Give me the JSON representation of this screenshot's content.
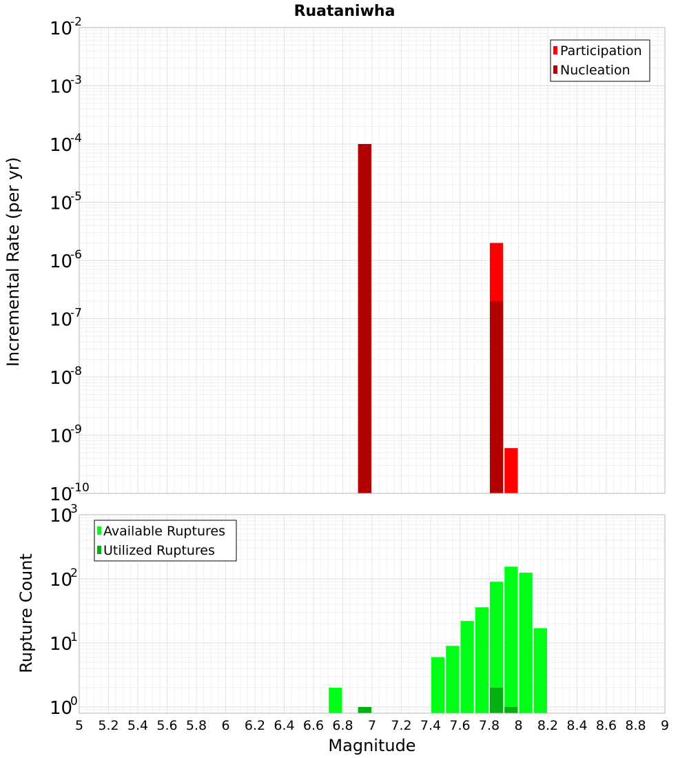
{
  "figure": {
    "title": "Ruataniwha",
    "xlabel": "Magnitude"
  },
  "chart_data": [
    {
      "type": "bar",
      "title": "Ruataniwha",
      "xlabel": "Magnitude",
      "ylabel": "Incremental Rate (per yr)",
      "yscale": "log",
      "xlim": [
        5,
        9
      ],
      "ylim": [
        1e-10,
        0.01
      ],
      "grid": true,
      "legend_position": "top-right",
      "series": [
        {
          "name": "Participation",
          "color": "#ff0000",
          "x": [
            6.95,
            7.85,
            7.95
          ],
          "values": [
            0.0001,
            2e-06,
            6e-10
          ]
        },
        {
          "name": "Nucleation",
          "color": "#b20000",
          "x": [
            6.95,
            7.85
          ],
          "values": [
            0.0001,
            2e-07
          ]
        }
      ]
    },
    {
      "type": "bar",
      "ylabel": "Rupture Count",
      "yscale": "log",
      "xlim": [
        5,
        9
      ],
      "ylim": [
        0.8,
        1000
      ],
      "grid": true,
      "legend_position": "top-left",
      "series": [
        {
          "name": "Available Ruptures",
          "color": "#00ff18",
          "x": [
            6.75,
            6.95,
            7.45,
            7.55,
            7.65,
            7.75,
            7.85,
            7.95,
            8.05,
            8.15
          ],
          "values": [
            2,
            1,
            6,
            9,
            22,
            36,
            90,
            155,
            125,
            17
          ]
        },
        {
          "name": "Utilized Ruptures",
          "color": "#00b00e",
          "x": [
            6.95,
            7.85,
            7.95
          ],
          "values": [
            1,
            2,
            1
          ]
        }
      ]
    }
  ],
  "xticks": [
    "5",
    "5.2",
    "5.4",
    "5.6",
    "5.8",
    "6",
    "6.2",
    "6.4",
    "6.6",
    "6.8",
    "7",
    "7.2",
    "7.4",
    "7.6",
    "7.8",
    "8",
    "8.2",
    "8.4",
    "8.6",
    "8.8",
    "9"
  ],
  "top_yticks": [
    {
      "base": "10",
      "exp": "-10"
    },
    {
      "base": "10",
      "exp": "-9"
    },
    {
      "base": "10",
      "exp": "-8"
    },
    {
      "base": "10",
      "exp": "-7"
    },
    {
      "base": "10",
      "exp": "-6"
    },
    {
      "base": "10",
      "exp": "-5"
    },
    {
      "base": "10",
      "exp": "-4"
    },
    {
      "base": "10",
      "exp": "-3"
    },
    {
      "base": "10",
      "exp": "-2"
    }
  ],
  "bottom_yticks": [
    {
      "base": "10",
      "exp": "0"
    },
    {
      "base": "10",
      "exp": "1"
    },
    {
      "base": "10",
      "exp": "2"
    },
    {
      "base": "10",
      "exp": "3"
    }
  ]
}
